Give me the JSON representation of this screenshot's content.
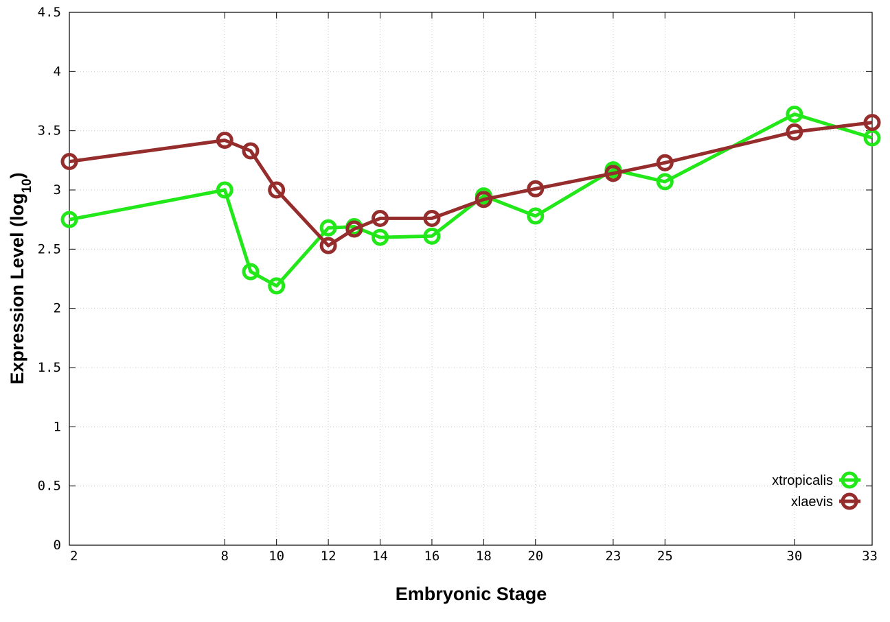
{
  "chart_data": {
    "type": "line",
    "title": "",
    "xlabel": "Embryonic Stage",
    "ylabel": "Expression Level (log",
    "ylabel_subscript": "10",
    "ylabel_suffix": ")",
    "xlim": [
      2,
      33
    ],
    "ylim": [
      0,
      4.5
    ],
    "x_ticks": [
      2,
      8,
      10,
      12,
      14,
      16,
      18,
      20,
      23,
      25,
      30,
      33
    ],
    "x_tick_labels": [
      "2",
      "8",
      "10",
      "12",
      "14",
      "16",
      "18",
      "20",
      "23",
      "25",
      "30",
      "33"
    ],
    "y_ticks": [
      0,
      0.5,
      1,
      1.5,
      2,
      2.5,
      3,
      3.5,
      4,
      4.5
    ],
    "y_tick_labels": [
      "0",
      "0.5",
      "1",
      "1.5",
      "2",
      "2.5",
      "3",
      "3.5",
      "4",
      "4.5"
    ],
    "grid": true,
    "legend_position": "bottom-right",
    "series": [
      {
        "name": "xtropicalis",
        "color": "#22e81a",
        "x": [
          2,
          8,
          9,
          10,
          12,
          13,
          14,
          16,
          18,
          20,
          23,
          25,
          30,
          33
        ],
        "y": [
          2.75,
          3.0,
          2.31,
          2.19,
          2.68,
          2.69,
          2.6,
          2.61,
          2.95,
          2.78,
          3.17,
          3.07,
          3.64,
          3.44
        ]
      },
      {
        "name": "xlaevis",
        "color": "#962d2d",
        "x": [
          2,
          8,
          9,
          10,
          12,
          13,
          14,
          16,
          18,
          20,
          23,
          25,
          30,
          33
        ],
        "y": [
          3.24,
          3.42,
          3.33,
          3.0,
          2.53,
          2.67,
          2.76,
          2.76,
          2.92,
          3.01,
          3.14,
          3.23,
          3.49,
          3.57
        ]
      }
    ]
  }
}
